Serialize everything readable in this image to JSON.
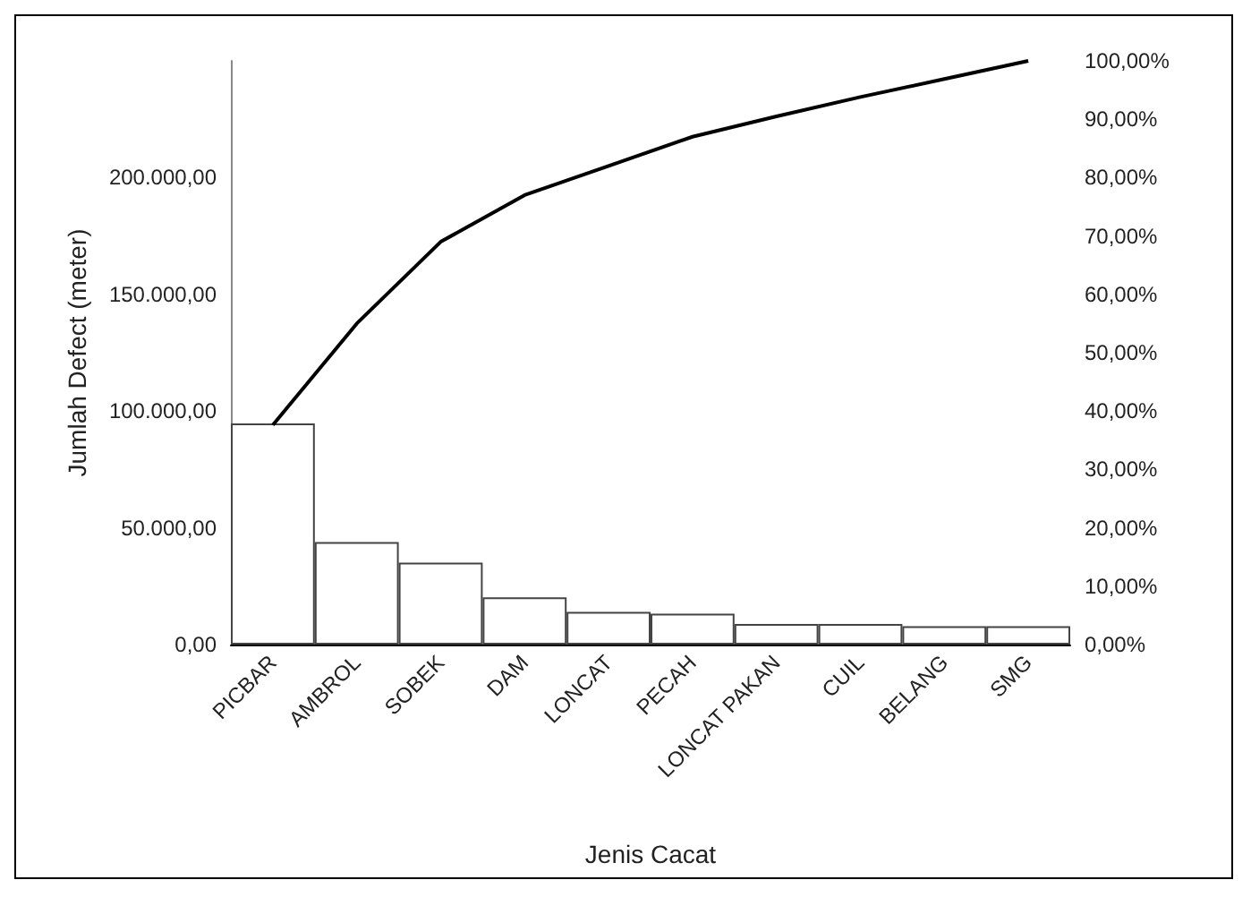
{
  "chart_data": {
    "type": "bar",
    "xlabel": "Jenis Cacat",
    "ylabel": "Jumlah Defect (meter)",
    "categories": [
      "PICBAR",
      "AMBROL",
      "SOBEK",
      "DAM",
      "LONCAT",
      "PECAH",
      "LONCAT PAKAN",
      "CUIL",
      "BELANG",
      "SMG"
    ],
    "series": [
      {
        "color": "#ffffff",
        "values": [
          94700,
          43900,
          35100,
          20200,
          14000,
          13200,
          8800,
          8800,
          7900,
          7900
        ]
      },
      {
        "type": "line",
        "axis": "y2",
        "color": "#000000",
        "values": [
          37.6,
          55,
          69,
          77,
          82,
          87,
          90.5,
          93.8,
          96.9,
          100
        ]
      }
    ],
    "ylim": [
      0,
      250000
    ],
    "yticks": [
      {
        "value": 0,
        "label": "0,00"
      },
      {
        "value": 50000,
        "label": "50.000,00"
      },
      {
        "value": 100000,
        "label": "100.000,00"
      },
      {
        "value": 150000,
        "label": "150.000,00"
      },
      {
        "value": 200000,
        "label": "200.000,00"
      }
    ],
    "y2lim": [
      0,
      100
    ],
    "y2ticks": [
      {
        "value": 0,
        "label": "0,00%"
      },
      {
        "value": 10,
        "label": "10,00%"
      },
      {
        "value": 20,
        "label": "20,00%"
      },
      {
        "value": 30,
        "label": "30,00%"
      },
      {
        "value": 40,
        "label": "40,00%"
      },
      {
        "value": 50,
        "label": "50,00%"
      },
      {
        "value": 60,
        "label": "60,00%"
      },
      {
        "value": 70,
        "label": "70,00%"
      },
      {
        "value": 80,
        "label": "80,00%"
      },
      {
        "value": 90,
        "label": "90,00%"
      },
      {
        "value": 100,
        "label": "100,00%"
      }
    ],
    "grid": false,
    "marker": "none"
  }
}
